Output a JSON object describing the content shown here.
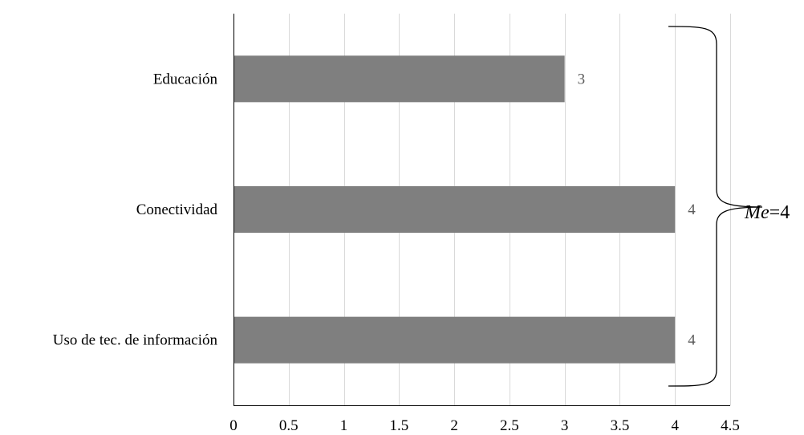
{
  "chart_data": {
    "type": "bar",
    "orientation": "horizontal",
    "categories": [
      "Educación",
      "Conectividad",
      "Uso de tec. de información"
    ],
    "values": [
      3,
      4,
      4
    ],
    "data_labels": [
      "3",
      "4",
      "4"
    ],
    "xlim": [
      0,
      4.5
    ],
    "x_ticks": [
      0,
      0.5,
      1,
      1.5,
      2,
      2.5,
      3,
      3.5,
      4,
      4.5
    ],
    "x_tick_labels": [
      "0",
      "0.5",
      "1",
      "1.5",
      "2",
      "2.5",
      "3",
      "3.5",
      "4",
      "4.5"
    ],
    "title": "",
    "xlabel": "",
    "ylabel": "",
    "grid": true,
    "legend": "none",
    "bar_color": "#7f7f7f",
    "annotation": {
      "symbol": "Me",
      "equals": "=4"
    }
  }
}
